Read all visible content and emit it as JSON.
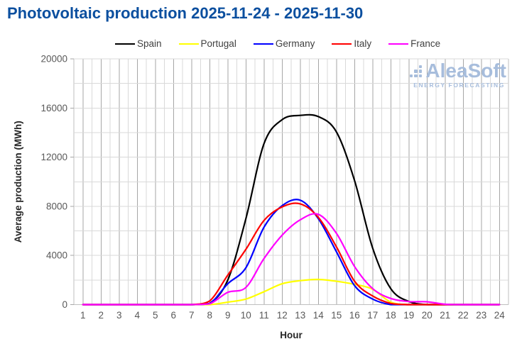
{
  "title": "Photovoltaic production 2025-11-24 - 2025-11-30",
  "watermark": {
    "name": "AleaSoft",
    "tagline": "ENERGY FORECASTING",
    "color": "#a7bddc"
  },
  "colors": {
    "title": "#0b4f9f",
    "tick_label": "#595959",
    "axis_title": "#262626",
    "grid_minor": "#d9d9d9",
    "grid_hour": "#a6a6a6",
    "plot_border": "#bfbfbf"
  },
  "chart_data": {
    "type": "line",
    "title": "Photovoltaic production 2025-11-24 - 2025-11-30",
    "xlabel": "Hour",
    "ylabel": "Average production (MWh)",
    "x": [
      1,
      2,
      3,
      4,
      5,
      6,
      7,
      8,
      9,
      10,
      11,
      12,
      13,
      14,
      15,
      16,
      17,
      18,
      19,
      20,
      21,
      22,
      23,
      24
    ],
    "ylim": [
      0,
      20000
    ],
    "ytick_step": 4000,
    "grid": "on",
    "legend_position": "top",
    "series": [
      {
        "name": "Spain",
        "color": "#000000",
        "values": [
          0,
          0,
          0,
          0,
          0,
          0,
          0,
          100,
          2000,
          7000,
          13100,
          15050,
          15400,
          15300,
          14050,
          10100,
          4600,
          1300,
          250,
          0,
          0,
          0,
          0,
          0
        ]
      },
      {
        "name": "Portugal",
        "color": "#ffff00",
        "values": [
          0,
          0,
          0,
          0,
          0,
          0,
          0,
          0,
          200,
          450,
          1050,
          1700,
          1950,
          2050,
          1900,
          1650,
          1250,
          200,
          0,
          0,
          0,
          0,
          0,
          0
        ]
      },
      {
        "name": "Germany",
        "color": "#0000ff",
        "values": [
          0,
          0,
          0,
          0,
          0,
          0,
          0,
          80,
          1700,
          3000,
          6300,
          8050,
          8500,
          7000,
          4300,
          1550,
          450,
          0,
          0,
          0,
          0,
          0,
          0,
          0
        ]
      },
      {
        "name": "Italy",
        "color": "#ff0000",
        "values": [
          0,
          0,
          0,
          0,
          0,
          0,
          0,
          300,
          2400,
          4500,
          6850,
          7950,
          8200,
          7100,
          4700,
          1900,
          700,
          100,
          0,
          0,
          0,
          0,
          0,
          0
        ]
      },
      {
        "name": "France",
        "color": "#ff00ff",
        "values": [
          0,
          0,
          0,
          0,
          0,
          0,
          0,
          60,
          1000,
          1400,
          3750,
          5650,
          6900,
          7350,
          5800,
          3100,
          1300,
          500,
          250,
          230,
          30,
          0,
          0,
          0
        ]
      }
    ]
  }
}
